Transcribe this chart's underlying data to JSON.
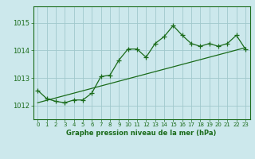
{
  "title": "Graphe pression niveau de la mer (hPa)",
  "background_color": "#cce8ec",
  "grid_color": "#a0c8cc",
  "line_color": "#1a6b1a",
  "xlim": [
    -0.5,
    23.5
  ],
  "ylim": [
    1011.5,
    1015.6
  ],
  "yticks": [
    1012,
    1013,
    1014,
    1015
  ],
  "ytick_labels": [
    "1012",
    "1013",
    "1014",
    "1015"
  ],
  "xticks": [
    0,
    1,
    2,
    3,
    4,
    5,
    6,
    7,
    8,
    9,
    10,
    11,
    12,
    13,
    14,
    15,
    16,
    17,
    18,
    19,
    20,
    21,
    22,
    23
  ],
  "series1_x": [
    0,
    1,
    2,
    3,
    4,
    5,
    6,
    7,
    8,
    9,
    10,
    11,
    12,
    13,
    14,
    15,
    16,
    17,
    18,
    19,
    20,
    21,
    22,
    23
  ],
  "series1_y": [
    1012.55,
    1012.25,
    1012.15,
    1012.1,
    1012.2,
    1012.2,
    1012.45,
    1013.05,
    1013.1,
    1013.65,
    1014.05,
    1014.05,
    1013.75,
    1014.25,
    1014.5,
    1014.9,
    1014.55,
    1014.25,
    1014.15,
    1014.25,
    1014.15,
    1014.25,
    1014.55,
    1014.05
  ],
  "series2_x": [
    0,
    23
  ],
  "series2_y": [
    1012.1,
    1014.1
  ]
}
